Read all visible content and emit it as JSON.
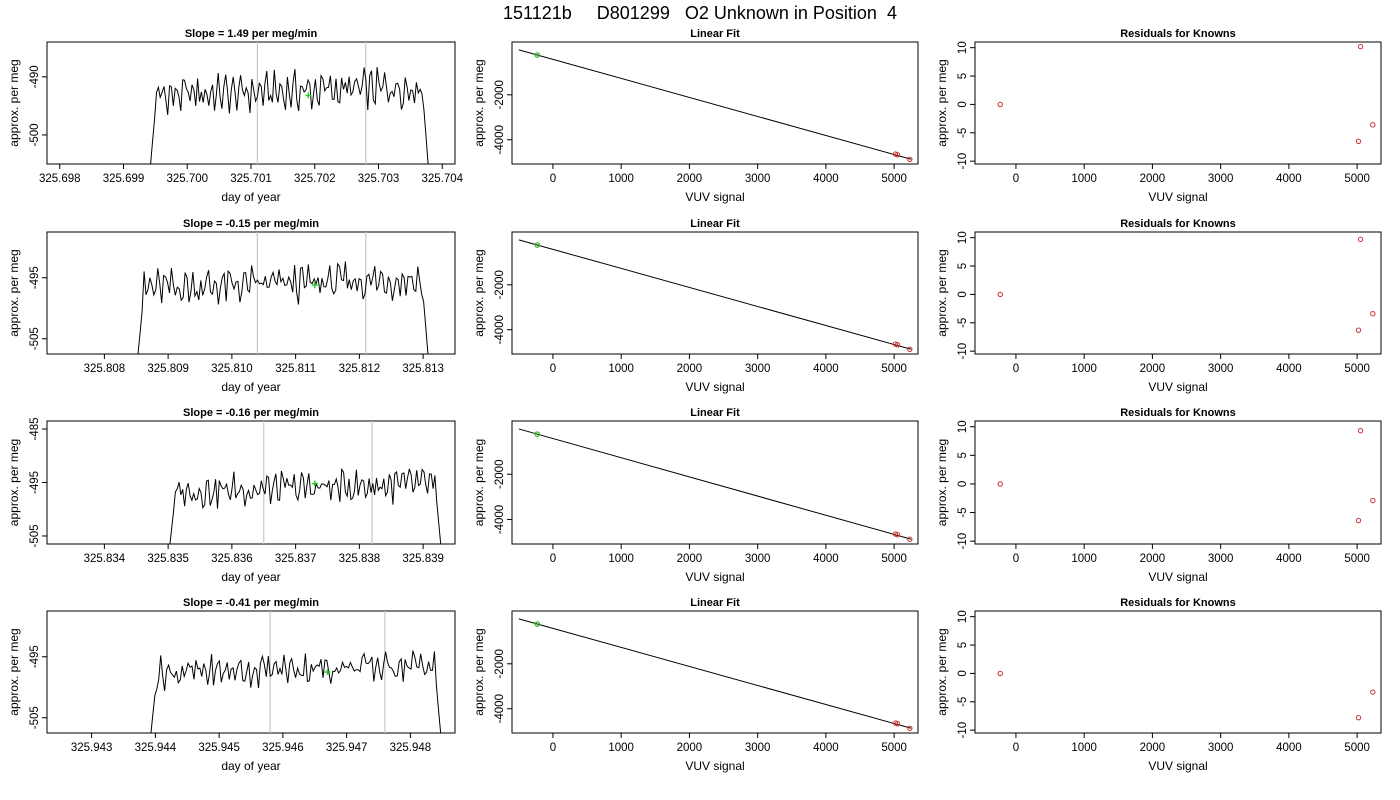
{
  "figure": {
    "title": "151121b     D801299   O2 Unknown in Position  4"
  },
  "chart_data": [
    {
      "row": 0,
      "panel": "trace",
      "type": "line",
      "title": "Slope =  1.49  per meg/min",
      "xlabel": "day of year",
      "ylabel": "approx. per meg",
      "xlim": [
        325.6978,
        325.7042
      ],
      "ylim": [
        -505,
        -484
      ],
      "xticks": [
        325.698,
        325.699,
        325.7,
        325.701,
        325.702,
        325.703,
        325.704
      ],
      "yticks": [
        -500,
        -490
      ],
      "x_start": 325.6994,
      "x_end": 325.7038,
      "baseline": -492.5,
      "amplitude": 2.6,
      "vlines": [
        325.7011,
        325.7028
      ],
      "marker": {
        "x": 325.7019,
        "y": -493.2
      }
    },
    {
      "row": 0,
      "panel": "fit",
      "type": "scatter",
      "title": "Linear Fit",
      "xlabel": "VUV signal",
      "ylabel": "approx. per meg",
      "xlim": [
        -600,
        5350
      ],
      "ylim": [
        -5080,
        350
      ],
      "xticks": [
        0,
        1000,
        2000,
        3000,
        4000,
        5000
      ],
      "yticks": [
        -4000,
        -2000
      ],
      "line": [
        [
          -500,
          0
        ],
        [
          5250,
          -4870
        ]
      ],
      "known_points": [
        {
          "x": 5020,
          "y": -4640
        },
        {
          "x": 5050,
          "y": -4670
        },
        {
          "x": 5230,
          "y": -4870
        },
        {
          "x": -230,
          "y": -230
        }
      ],
      "unknown_point": {
        "x": -230,
        "y": -230
      }
    },
    {
      "row": 0,
      "panel": "residuals",
      "type": "scatter",
      "title": "Residuals for Knowns",
      "xlabel": "VUV signal",
      "ylabel": "approx. per meg",
      "xlim": [
        -600,
        5350
      ],
      "ylim": [
        -10.5,
        11
      ],
      "xticks": [
        0,
        1000,
        2000,
        3000,
        4000,
        5000
      ],
      "yticks": [
        -10,
        -5,
        0,
        5,
        10
      ],
      "points": [
        {
          "x": -230,
          "y": 0
        },
        {
          "x": 5050,
          "y": 10.2
        },
        {
          "x": 5020,
          "y": -6.5
        },
        {
          "x": 5230,
          "y": -3.6
        }
      ]
    },
    {
      "row": 1,
      "panel": "trace",
      "type": "line",
      "title": "Slope =  -0.15  per meg/min",
      "xlabel": "day of year",
      "ylabel": "approx. per meg",
      "xlim": [
        325.8071,
        325.8135
      ],
      "ylim": [
        -507.5,
        -487.5
      ],
      "xticks": [
        325.808,
        325.809,
        325.81,
        325.811,
        325.812,
        325.813
      ],
      "yticks": [
        -505,
        -495
      ],
      "x_start": 325.8085,
      "x_end": 325.8131,
      "baseline": -496,
      "amplitude": 2.4,
      "vlines": [
        325.8104,
        325.8121
      ],
      "marker": {
        "x": 325.8113,
        "y": -496.2
      }
    },
    {
      "row": 1,
      "panel": "fit",
      "type": "scatter",
      "title": "Linear Fit",
      "xlabel": "VUV signal",
      "ylabel": "approx. per meg",
      "xlim": [
        -600,
        5350
      ],
      "ylim": [
        -5080,
        350
      ],
      "xticks": [
        0,
        1000,
        2000,
        3000,
        4000,
        5000
      ],
      "yticks": [
        -4000,
        -2000
      ],
      "line": [
        [
          -500,
          0
        ],
        [
          5250,
          -4870
        ]
      ],
      "known_points": [
        {
          "x": 5020,
          "y": -4640
        },
        {
          "x": 5050,
          "y": -4670
        },
        {
          "x": 5230,
          "y": -4870
        },
        {
          "x": -230,
          "y": -230
        }
      ],
      "unknown_point": {
        "x": -230,
        "y": -230
      }
    },
    {
      "row": 1,
      "panel": "residuals",
      "type": "scatter",
      "title": "Residuals for Knowns",
      "xlabel": "VUV signal",
      "ylabel": "approx. per meg",
      "xlim": [
        -600,
        5350
      ],
      "ylim": [
        -10.5,
        11
      ],
      "xticks": [
        0,
        1000,
        2000,
        3000,
        4000,
        5000
      ],
      "yticks": [
        -10,
        -5,
        0,
        5,
        10
      ],
      "points": [
        {
          "x": -230,
          "y": 0
        },
        {
          "x": 5050,
          "y": 9.7
        },
        {
          "x": 5020,
          "y": -6.3
        },
        {
          "x": 5230,
          "y": -3.4
        }
      ]
    },
    {
      "row": 2,
      "panel": "trace",
      "type": "line",
      "title": "Slope =  -0.16  per meg/min",
      "xlabel": "day of year",
      "ylabel": "approx. per meg",
      "xlim": [
        325.8331,
        325.8395
      ],
      "ylim": [
        -506.5,
        -483.5
      ],
      "xticks": [
        325.834,
        325.835,
        325.836,
        325.837,
        325.838,
        325.839
      ],
      "yticks": [
        -505,
        -495,
        -485
      ],
      "x_start": 325.835,
      "x_end": 325.8393,
      "baseline": -496,
      "amplitude": 2.5,
      "vlines": [
        325.8365,
        325.8382
      ],
      "marker": {
        "x": 325.8373,
        "y": -495.2
      }
    },
    {
      "row": 2,
      "panel": "fit",
      "type": "scatter",
      "title": "Linear Fit",
      "xlabel": "VUV signal",
      "ylabel": "approx. per meg",
      "xlim": [
        -600,
        5350
      ],
      "ylim": [
        -5080,
        350
      ],
      "xticks": [
        0,
        1000,
        2000,
        3000,
        4000,
        5000
      ],
      "yticks": [
        -4000,
        -2000
      ],
      "line": [
        [
          -500,
          0
        ],
        [
          5250,
          -4870
        ]
      ],
      "known_points": [
        {
          "x": 5020,
          "y": -4640
        },
        {
          "x": 5050,
          "y": -4670
        },
        {
          "x": 5230,
          "y": -4870
        },
        {
          "x": -230,
          "y": -230
        }
      ],
      "unknown_point": {
        "x": -230,
        "y": -230
      }
    },
    {
      "row": 2,
      "panel": "residuals",
      "type": "scatter",
      "title": "Residuals for Knowns",
      "xlabel": "VUV signal",
      "ylabel": "approx. per meg",
      "xlim": [
        -600,
        5350
      ],
      "ylim": [
        -10.5,
        11
      ],
      "xticks": [
        0,
        1000,
        2000,
        3000,
        4000,
        5000
      ],
      "yticks": [
        -10,
        -5,
        0,
        5,
        10
      ],
      "points": [
        {
          "x": -230,
          "y": 0
        },
        {
          "x": 5050,
          "y": 9.3
        },
        {
          "x": 5020,
          "y": -6.4
        },
        {
          "x": 5230,
          "y": -2.9
        }
      ]
    },
    {
      "row": 3,
      "panel": "trace",
      "type": "line",
      "title": "Slope =  -0.41  per meg/min",
      "xlabel": "day of year",
      "ylabel": "approx. per meg",
      "xlim": [
        325.9423,
        325.9487
      ],
      "ylim": [
        -507.5,
        -487.5
      ],
      "xticks": [
        325.943,
        325.944,
        325.945,
        325.946,
        325.947,
        325.948
      ],
      "yticks": [
        -505,
        -495
      ],
      "x_start": 325.9439,
      "x_end": 325.9485,
      "baseline": -497,
      "amplitude": 2.0,
      "vlines": [
        325.9458,
        325.9476
      ],
      "marker": {
        "x": 325.9467,
        "y": -497.5
      }
    },
    {
      "row": 3,
      "panel": "fit",
      "type": "scatter",
      "title": "Linear Fit",
      "xlabel": "VUV signal",
      "ylabel": "approx. per meg",
      "xlim": [
        -600,
        5350
      ],
      "ylim": [
        -5080,
        350
      ],
      "xticks": [
        0,
        1000,
        2000,
        3000,
        4000,
        5000
      ],
      "yticks": [
        -4000,
        -2000
      ],
      "line": [
        [
          -500,
          0
        ],
        [
          5250,
          -4870
        ]
      ],
      "known_points": [
        {
          "x": 5020,
          "y": -4640
        },
        {
          "x": 5050,
          "y": -4670
        },
        {
          "x": 5230,
          "y": -4870
        },
        {
          "x": -230,
          "y": -230
        }
      ],
      "unknown_point": {
        "x": -230,
        "y": -230
      }
    },
    {
      "row": 3,
      "panel": "residuals",
      "type": "scatter",
      "title": "Residuals for Knowns",
      "xlabel": "VUV signal",
      "ylabel": "approx. per meg",
      "xlim": [
        -600,
        5350
      ],
      "ylim": [
        -10.5,
        11
      ],
      "xticks": [
        0,
        1000,
        2000,
        3000,
        4000,
        5000
      ],
      "yticks": [
        -10,
        -5,
        0,
        5,
        10
      ],
      "points": [
        {
          "x": -230,
          "y": 0
        },
        {
          "x": 5020,
          "y": -7.8
        },
        {
          "x": 5230,
          "y": -3.3
        }
      ]
    }
  ]
}
